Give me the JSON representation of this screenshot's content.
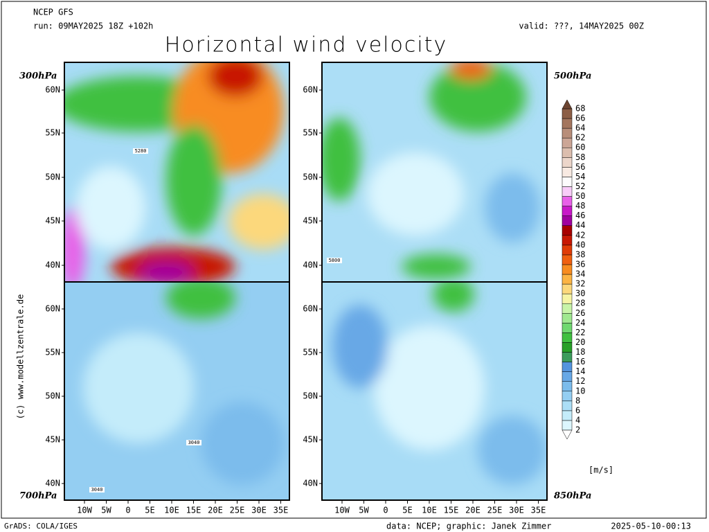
{
  "header": {
    "model": "NCEP GFS",
    "run": "run: 09MAY2025 18Z +102h",
    "valid": "valid: ???, 14MAY2025 00Z",
    "title": "Horizontal wind velocity"
  },
  "panels": [
    {
      "level": "300hPa",
      "contour_labels": [
        "5280"
      ]
    },
    {
      "level": "500hPa",
      "contour_labels": [
        "5800"
      ]
    },
    {
      "level": "700hPa",
      "contour_labels": [
        "3040",
        "3040"
      ]
    },
    {
      "level": "850hPa",
      "contour_labels": []
    }
  ],
  "lat_labels": [
    "60N",
    "55N",
    "50N",
    "45N",
    "40N"
  ],
  "lon_labels": [
    "10W",
    "5W",
    "0",
    "5E",
    "10E",
    "15E",
    "20E",
    "25E",
    "30E",
    "35E"
  ],
  "colorbar": {
    "labels": [
      2,
      4,
      6,
      8,
      10,
      12,
      14,
      16,
      18,
      20,
      22,
      24,
      26,
      28,
      30,
      32,
      34,
      36,
      38,
      40,
      42,
      44,
      46,
      48,
      50,
      52,
      54,
      56,
      58,
      60,
      62,
      64,
      66,
      68
    ],
    "under_color": "#ffffff",
    "colors": [
      "#dcf6fe",
      "#c4ecfa",
      "#acdef6",
      "#94cef2",
      "#7cbcec",
      "#68a8e6",
      "#5494de",
      "#3c9c5c",
      "#28a028",
      "#40c040",
      "#70d870",
      "#a0e890",
      "#c8f4a8",
      "#f6f4a4",
      "#fcd87c",
      "#fcb444",
      "#f88c20",
      "#f06010",
      "#e03c08",
      "#c81804",
      "#a80000",
      "#a000a0",
      "#c818c8",
      "#e860e8",
      "#f8ccf8",
      "#fcfcfc",
      "#f8eae2",
      "#ecd6ca",
      "#dcbeae",
      "#cca696",
      "#b88e7a",
      "#a4765e",
      "#8c5e46"
    ],
    "over_color": "#6c4430",
    "unit": "[m/s]"
  },
  "credit_side": "(c) www.modellzentrale.de",
  "footer": {
    "software": "GrADS: COLA/IGES",
    "source": "data: NCEP; graphic: Janek Zimmer",
    "timestamp": "2025-05-10-00:13"
  }
}
